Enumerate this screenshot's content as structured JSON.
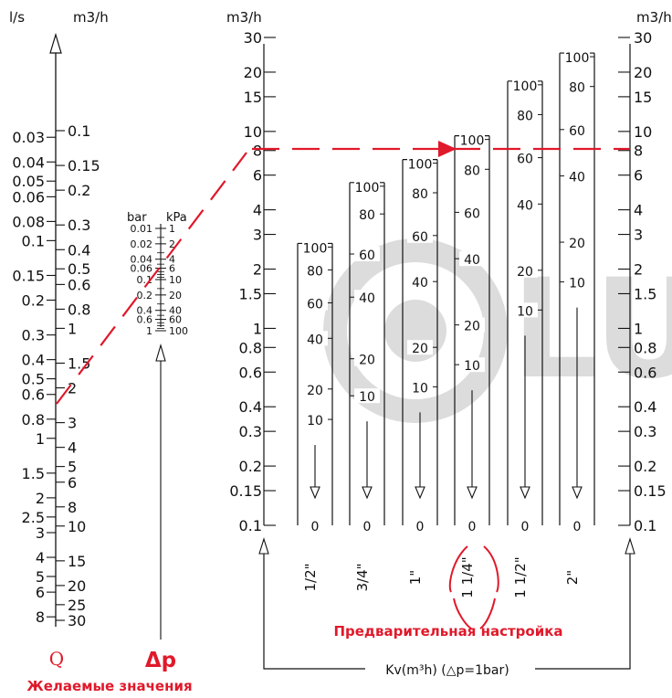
{
  "colors": {
    "line": "#111111",
    "accent": "#e0192b",
    "watermark": "#d9d9d9"
  },
  "chart_data": {
    "type": "nomogram",
    "flow_axis": {
      "unit_left": "l/s",
      "unit_right": "m3/h",
      "ls_ticks": [
        "0.03",
        "0.04",
        "0.05",
        "0.06",
        "0.08",
        "0.1",
        "0.15",
        "0.2",
        "0.3",
        "0.4",
        "0.5",
        "0.6",
        "0.8",
        "1",
        "1.5",
        "2",
        "2.5",
        "3",
        "4",
        "5",
        "6",
        "8"
      ],
      "m3h_ticks": [
        "0.1",
        "0.15",
        "0.2",
        "0.3",
        "0.4",
        "0.5",
        "0.6",
        "0.8",
        "1",
        "1.5",
        "2",
        "3",
        "4",
        "5",
        "6",
        "8",
        "10",
        "15",
        "20",
        "25",
        "30"
      ],
      "label": "Q"
    },
    "dp_axis": {
      "unit_left": "bar",
      "unit_right": "kPa",
      "bar_ticks": [
        "0.01",
        "0.02",
        "0.04",
        "0.06",
        "0.1",
        "0.2",
        "0.4",
        "0.6",
        "1"
      ],
      "kpa_ticks": [
        "1",
        "2",
        "4",
        "6",
        "10",
        "20",
        "40",
        "60",
        "100"
      ],
      "label": "Δp"
    },
    "kv_axis": {
      "unit": "m3/h",
      "ticks": [
        "30",
        "20",
        "15",
        "10",
        "8",
        "6",
        "4",
        "3",
        "2",
        "1.5",
        "1",
        "0.8",
        "0.6",
        "0.4",
        "0.3",
        "0.2",
        "0.15",
        "0.1"
      ]
    },
    "valves": [
      {
        "size": "1/2\"",
        "kv_max": 2.7,
        "presets": [
          "100",
          "80",
          "60",
          "40",
          "20",
          "10",
          "0"
        ]
      },
      {
        "size": "3/4\"",
        "kv_max": 5.5,
        "presets": [
          "100",
          "80",
          "60",
          "40",
          "20",
          "10",
          "0"
        ]
      },
      {
        "size": "1\"",
        "kv_max": 7.2,
        "presets": [
          "100",
          "80",
          "60",
          "40",
          "20",
          "10",
          "0"
        ]
      },
      {
        "size": "1 1/4\"",
        "kv_max": 9.5,
        "presets": [
          "100",
          "80",
          "60",
          "40",
          "20",
          "10",
          "0"
        ]
      },
      {
        "size": "1 1/2\"",
        "kv_max": 18,
        "presets": [
          "100",
          "80",
          "60",
          "40",
          "20",
          "10",
          "0"
        ]
      },
      {
        "size": "2\"",
        "kv_max": 25,
        "presets": [
          "100",
          "80",
          "60",
          "40",
          "20",
          "10",
          "0"
        ]
      }
    ],
    "example_path": {
      "q_m3h": 2,
      "dp_bar": 0.1,
      "kv": 8,
      "valve": "1 1/4\"",
      "preset": "80"
    },
    "annotations": {
      "desired_values": "Желаемые значения",
      "presetting": "Предварительная настройка",
      "kv_caption": "Kv(m³h)  (△p=1bar)"
    }
  }
}
